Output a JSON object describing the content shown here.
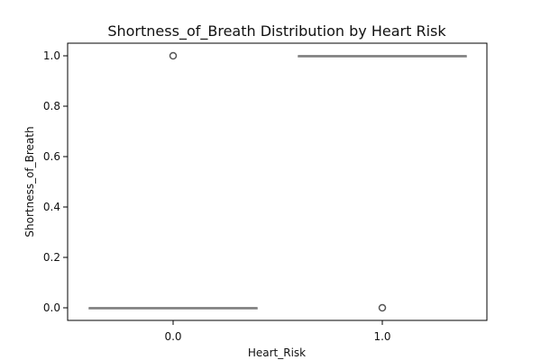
{
  "chart_data": {
    "type": "box",
    "title": "Shortness_of_Breath Distribution by Heart Risk",
    "xlabel": "Heart_Risk",
    "ylabel": "Shortness_of_Breath",
    "categories": [
      "0.0",
      "1.0"
    ],
    "ylim": [
      -0.05,
      1.05
    ],
    "yticks": [
      0.0,
      0.2,
      0.4,
      0.6,
      0.8,
      1.0
    ],
    "ytick_labels": [
      "0.0",
      "0.2",
      "0.4",
      "0.6",
      "0.8",
      "1.0"
    ],
    "boxes": [
      {
        "category": "0.0",
        "q1": 0.0,
        "median": 0.0,
        "q3": 0.0,
        "whisker_low": 0.0,
        "whisker_high": 0.0,
        "outliers": [
          1.0
        ]
      },
      {
        "category": "1.0",
        "q1": 1.0,
        "median": 1.0,
        "q3": 1.0,
        "whisker_low": 1.0,
        "whisker_high": 1.0,
        "outliers": [
          0.0
        ]
      }
    ],
    "legend": "none",
    "grid": false,
    "colors": {
      "box_edge": "#7f7f7f",
      "median": "#7f7f7f",
      "outlier_edge": "#555555",
      "axis": "#000000"
    }
  }
}
